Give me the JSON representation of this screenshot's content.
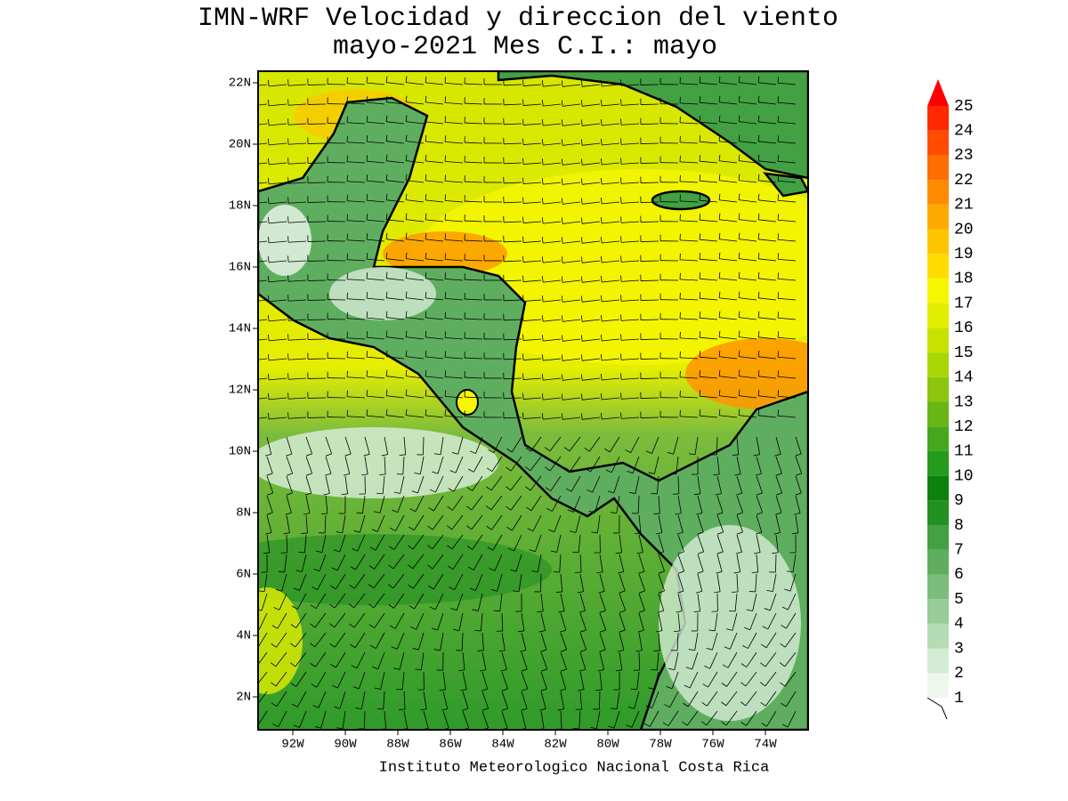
{
  "header": {
    "title": [
      "IMN-WRF Velocidad y direccion del viento",
      "mayo-2021 Mes C.I.: mayo"
    ]
  },
  "map": {
    "lat_labels": [
      "22N",
      "20N",
      "18N",
      "16N",
      "14N",
      "12N",
      "10N",
      "8N",
      "6N",
      "4N",
      "2N"
    ],
    "lon_labels": [
      "92W",
      "90W",
      "88W",
      "86W",
      "84W",
      "82W",
      "80W",
      "78W",
      "76W",
      "74W"
    ]
  },
  "colorbar": {
    "levels": [
      1,
      2,
      3,
      4,
      5,
      6,
      7,
      8,
      9,
      10,
      11,
      12,
      13,
      14,
      15,
      16,
      17,
      18,
      19,
      20,
      21,
      22,
      23,
      24,
      25
    ],
    "colors": [
      "#eef7ee",
      "#d4ebd4",
      "#b6dcb6",
      "#98cc98",
      "#7bbd7b",
      "#5fae5f",
      "#43a043",
      "#239023",
      "#0c820c",
      "#259a1e",
      "#45a81c",
      "#68b616",
      "#8cc60e",
      "#aad606",
      "#c8e200",
      "#e2ee00",
      "#f6f600",
      "#ffdc00",
      "#ffc400",
      "#ffaa00",
      "#ff8c00",
      "#ff6e00",
      "#ff4c00",
      "#ff2800",
      "#ff0000"
    ]
  },
  "footer": "Instituto Meteorologico Nacional Costa Rica"
}
